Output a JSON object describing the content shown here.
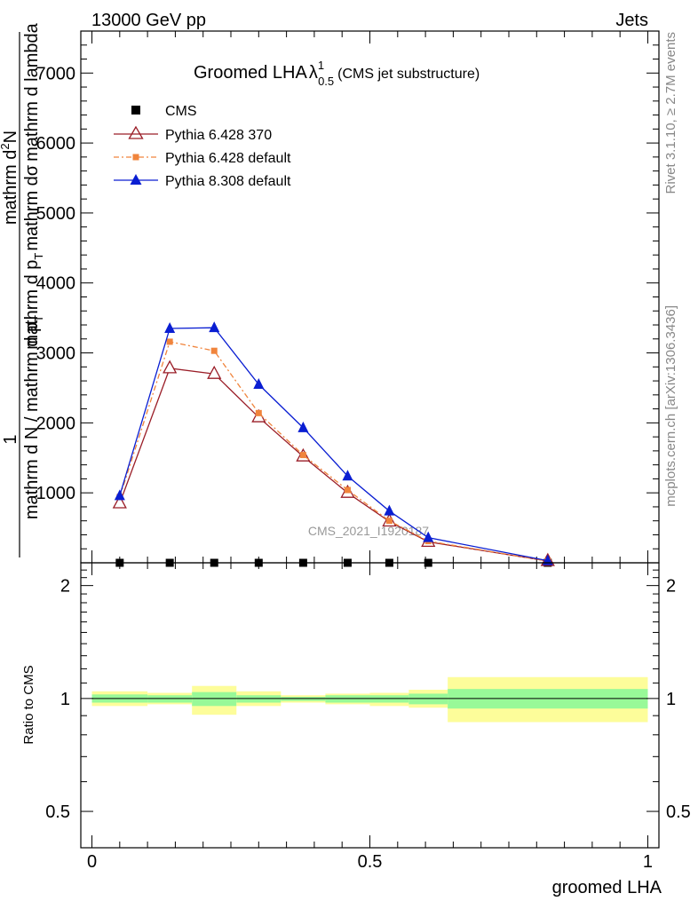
{
  "header": {
    "energy_label": "13000 GeV pp",
    "process_label": "Jets"
  },
  "side_labels": {
    "rivet": "Rivet 3.1.10, ≥ 2.7M events",
    "mcplots": "mcplots.cern.ch [arXiv:1306.3436]"
  },
  "watermark": "CMS_2021_I1920187",
  "colors": {
    "cms": "#000000",
    "p6_370": "#9a1d27",
    "p6_default": "#f0843c",
    "p8_default": "#0a1ed2",
    "band_inner": "#98f998",
    "band_outer": "#fdfd9a"
  },
  "chart_data": [
    {
      "type": "line",
      "title": "Groomed LHA",
      "title_symbol": "λ",
      "title_sup": "1",
      "title_sub": "0.5",
      "title_suffix": "(CMS jet substructure)",
      "ylabel_numerator_top": "mathrm d",
      "ylabel_numerator_sup": "2",
      "ylabel_numerator_end": "N",
      "ylabel_denominator": "mathrm d p",
      "ylabel_denominator_sub": "T",
      "ylabel_denominator_mid": "mathrm d",
      "ylabel_denominator_sym": "σ",
      "ylabel_denominator_end": "mathrm d lambda",
      "ylabel_prefix_num": "1",
      "ylabel_prefix_den": "mathrm d N / mathrm d p",
      "ylabel_prefix_sub": "T",
      "xlim": [
        -0.02,
        1.02
      ],
      "ylim": [
        0,
        7600
      ],
      "yticks": [
        1000,
        2000,
        3000,
        4000,
        5000,
        6000,
        7000
      ],
      "ytick_labels": [
        "1000",
        "2000",
        "3000",
        "4000",
        "5000",
        "6000",
        "7000"
      ],
      "x_bins": [
        [
          0.0,
          0.1
        ],
        [
          0.1,
          0.18
        ],
        [
          0.18,
          0.26
        ],
        [
          0.26,
          0.34
        ],
        [
          0.34,
          0.42
        ],
        [
          0.42,
          0.5
        ],
        [
          0.5,
          0.57
        ],
        [
          0.57,
          0.64
        ],
        [
          0.64,
          1.0
        ]
      ],
      "legend_position": "top-left",
      "series": [
        {
          "name": "CMS",
          "key": "cms",
          "marker": "square",
          "x": [
            0.05,
            0.14,
            0.22,
            0.3,
            0.38,
            0.46,
            0.535,
            0.605,
            0.82
          ],
          "y": [
            0,
            0,
            0,
            0,
            0,
            0,
            0,
            0,
            0
          ]
        },
        {
          "name": "Pythia 6.428 370",
          "key": "p6_370",
          "marker": "open-triangle",
          "x": [
            0.05,
            0.14,
            0.22,
            0.3,
            0.38,
            0.46,
            0.535,
            0.605,
            0.82
          ],
          "y": [
            850,
            2780,
            2700,
            2080,
            1520,
            1000,
            590,
            300,
            25
          ]
        },
        {
          "name": "Pythia 6.428 default",
          "key": "p6_default",
          "marker": "square-small",
          "x": [
            0.05,
            0.14,
            0.22,
            0.3,
            0.38,
            0.46,
            0.535,
            0.605,
            0.82
          ],
          "y": [
            940,
            3160,
            3030,
            2140,
            1540,
            1040,
            600,
            310,
            25
          ]
        },
        {
          "name": "Pythia 8.308 default",
          "key": "p8_default",
          "marker": "filled-triangle",
          "x": [
            0.05,
            0.14,
            0.22,
            0.3,
            0.38,
            0.46,
            0.535,
            0.605,
            0.82
          ],
          "y": [
            960,
            3350,
            3360,
            2550,
            1930,
            1240,
            740,
            360,
            30
          ]
        }
      ]
    },
    {
      "type": "area",
      "ylabel": "Ratio to CMS",
      "xlabel": "groomed LHA",
      "xlim": [
        -0.02,
        1.02
      ],
      "ylim": [
        0.4,
        2.3
      ],
      "log_y": true,
      "yticks": [
        0.5,
        1,
        2
      ],
      "ytick_labels": [
        "0.5",
        "1",
        "2"
      ],
      "xticks": [
        0,
        0.5,
        1
      ],
      "xtick_labels": [
        "0",
        "0.5",
        "1"
      ],
      "reference_line": 1,
      "bins": [
        {
          "x": [
            0.0,
            0.1
          ],
          "inner": [
            0.975,
            1.025
          ],
          "outer": [
            0.955,
            1.045
          ]
        },
        {
          "x": [
            0.1,
            0.18
          ],
          "inner": [
            0.975,
            1.02
          ],
          "outer": [
            0.965,
            1.035
          ]
        },
        {
          "x": [
            0.18,
            0.26
          ],
          "inner": [
            0.955,
            1.04
          ],
          "outer": [
            0.905,
            1.08
          ]
        },
        {
          "x": [
            0.26,
            0.34
          ],
          "inner": [
            0.975,
            1.02
          ],
          "outer": [
            0.955,
            1.045
          ]
        },
        {
          "x": [
            0.34,
            0.42
          ],
          "inner": [
            0.985,
            1.01
          ],
          "outer": [
            0.975,
            1.02
          ]
        },
        {
          "x": [
            0.42,
            0.5
          ],
          "inner": [
            0.975,
            1.02
          ],
          "outer": [
            0.965,
            1.03
          ]
        },
        {
          "x": [
            0.5,
            0.57
          ],
          "inner": [
            0.975,
            1.02
          ],
          "outer": [
            0.955,
            1.035
          ]
        },
        {
          "x": [
            0.57,
            0.64
          ],
          "inner": [
            0.965,
            1.03
          ],
          "outer": [
            0.945,
            1.055
          ]
        },
        {
          "x": [
            0.64,
            1.0
          ],
          "inner": [
            0.94,
            1.06
          ],
          "outer": [
            0.865,
            1.14
          ]
        }
      ]
    }
  ]
}
